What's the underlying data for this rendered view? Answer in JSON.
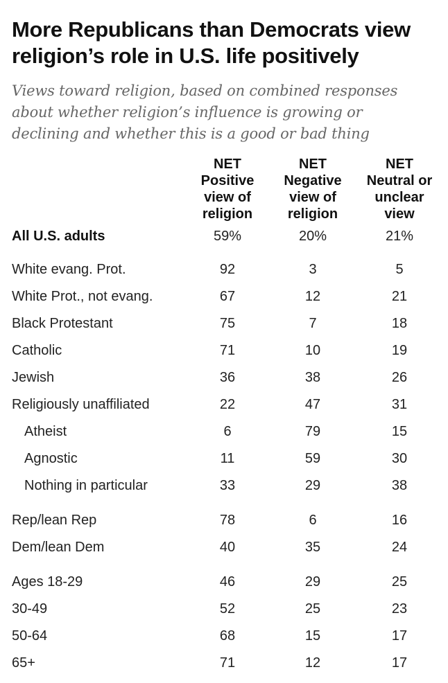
{
  "title_line1": "More Republicans than Democrats view",
  "title_line2": "religion’s role in U.S. life positively",
  "subtitle_line1": "Views toward religion, based on combined responses",
  "subtitle_line2": "about whether religion’s influence is growing or",
  "subtitle_line3": "declining and whether this is a good or bad thing",
  "chart_data": {
    "type": "table",
    "columns": [
      {
        "lines": [
          "NET",
          "Positive",
          "view of",
          "religion"
        ]
      },
      {
        "lines": [
          "NET",
          "Negative",
          "view of",
          "religion"
        ]
      },
      {
        "lines": [
          "NET",
          "Neutral or",
          "unclear",
          "view"
        ]
      }
    ],
    "rows": [
      {
        "label": "All U.S. adults",
        "values": [
          "59%",
          "20%",
          "21%"
        ],
        "bold": true,
        "indent": false
      },
      {
        "label": "White evang. Prot.",
        "values": [
          "92",
          "3",
          "5"
        ],
        "bold": false,
        "indent": false
      },
      {
        "label": "White Prot., not evang.",
        "values": [
          "67",
          "12",
          "21"
        ],
        "bold": false,
        "indent": false
      },
      {
        "label": "Black Protestant",
        "values": [
          "75",
          "7",
          "18"
        ],
        "bold": false,
        "indent": false
      },
      {
        "label": "Catholic",
        "values": [
          "71",
          "10",
          "19"
        ],
        "bold": false,
        "indent": false
      },
      {
        "label": "Jewish",
        "values": [
          "36",
          "38",
          "26"
        ],
        "bold": false,
        "indent": false
      },
      {
        "label": "Religiously unaffiliated",
        "values": [
          "22",
          "47",
          "31"
        ],
        "bold": false,
        "indent": false
      },
      {
        "label": "Atheist",
        "values": [
          "6",
          "79",
          "15"
        ],
        "bold": false,
        "indent": true
      },
      {
        "label": "Agnostic",
        "values": [
          "11",
          "59",
          "30"
        ],
        "bold": false,
        "indent": true
      },
      {
        "label": "Nothing in particular",
        "values": [
          "33",
          "29",
          "38"
        ],
        "bold": false,
        "indent": true
      },
      {
        "label": "Rep/lean Rep",
        "values": [
          "78",
          "6",
          "16"
        ],
        "bold": false,
        "indent": false
      },
      {
        "label": "Dem/lean Dem",
        "values": [
          "40",
          "35",
          "24"
        ],
        "bold": false,
        "indent": false
      },
      {
        "label": "Ages 18-29",
        "values": [
          "46",
          "29",
          "25"
        ],
        "bold": false,
        "indent": false
      },
      {
        "label": "30-49",
        "values": [
          "52",
          "25",
          "23"
        ],
        "bold": false,
        "indent": false
      },
      {
        "label": "50-64",
        "values": [
          "68",
          "15",
          "17"
        ],
        "bold": false,
        "indent": false
      },
      {
        "label": "65+",
        "values": [
          "71",
          "12",
          "17"
        ],
        "bold": false,
        "indent": false
      }
    ]
  }
}
